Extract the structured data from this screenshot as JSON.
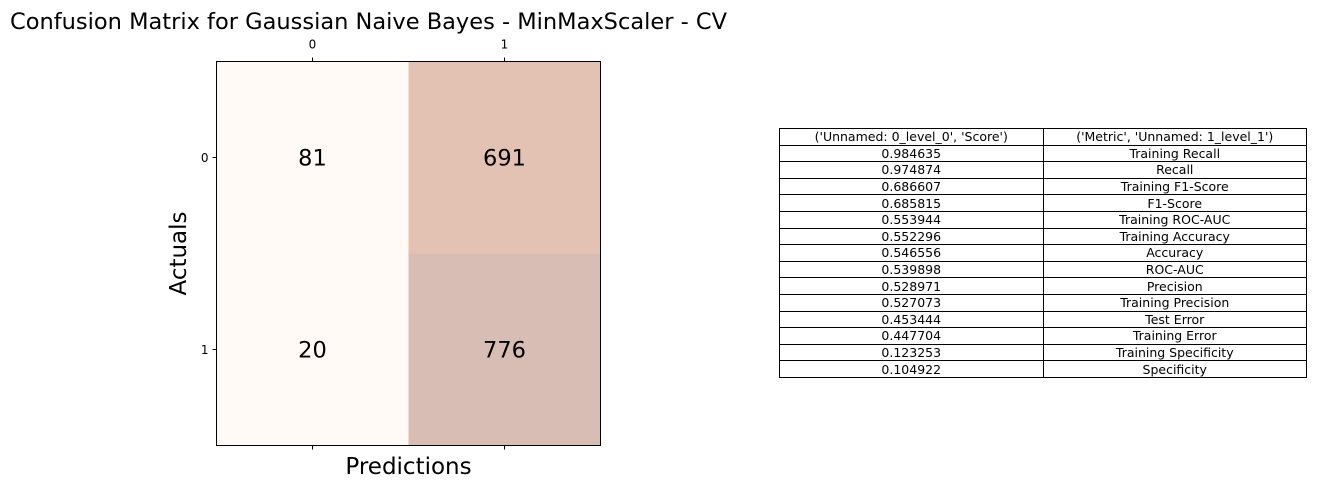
{
  "chart_data": [
    {
      "type": "heatmap",
      "title": "Confusion Matrix for Gaussian Naive Bayes - MinMaxScaler - CV",
      "xlabel": "Predictions",
      "ylabel": "Actuals",
      "x_tick_labels": [
        "0",
        "1"
      ],
      "y_tick_labels": [
        "0",
        "1"
      ],
      "values": [
        [
          81,
          691
        ],
        [
          20,
          776
        ]
      ],
      "colormap": "Oranges",
      "cell_colors": [
        [
          "#fffaf5",
          "#e4c2b3"
        ],
        [
          "#fffaf5",
          "#d8bdb5"
        ]
      ]
    },
    {
      "type": "table",
      "columns": [
        "('Unnamed: 0_level_0', 'Score')",
        "('Metric', 'Unnamed: 1_level_1')"
      ],
      "rows": [
        [
          "0.984635",
          "Training Recall"
        ],
        [
          "0.974874",
          "Recall"
        ],
        [
          "0.686607",
          "Training F1-Score"
        ],
        [
          "0.685815",
          "F1-Score"
        ],
        [
          "0.553944",
          "Training ROC-AUC"
        ],
        [
          "0.552296",
          "Training Accuracy"
        ],
        [
          "0.546556",
          "Accuracy"
        ],
        [
          "0.539898",
          "ROC-AUC"
        ],
        [
          "0.528971",
          "Precision"
        ],
        [
          "0.527073",
          "Training Precision"
        ],
        [
          "0.453444",
          "Test Error"
        ],
        [
          "0.447704",
          "Training Error"
        ],
        [
          "0.123253",
          "Training Specificity"
        ],
        [
          "0.104922",
          "Specificity"
        ]
      ]
    }
  ]
}
